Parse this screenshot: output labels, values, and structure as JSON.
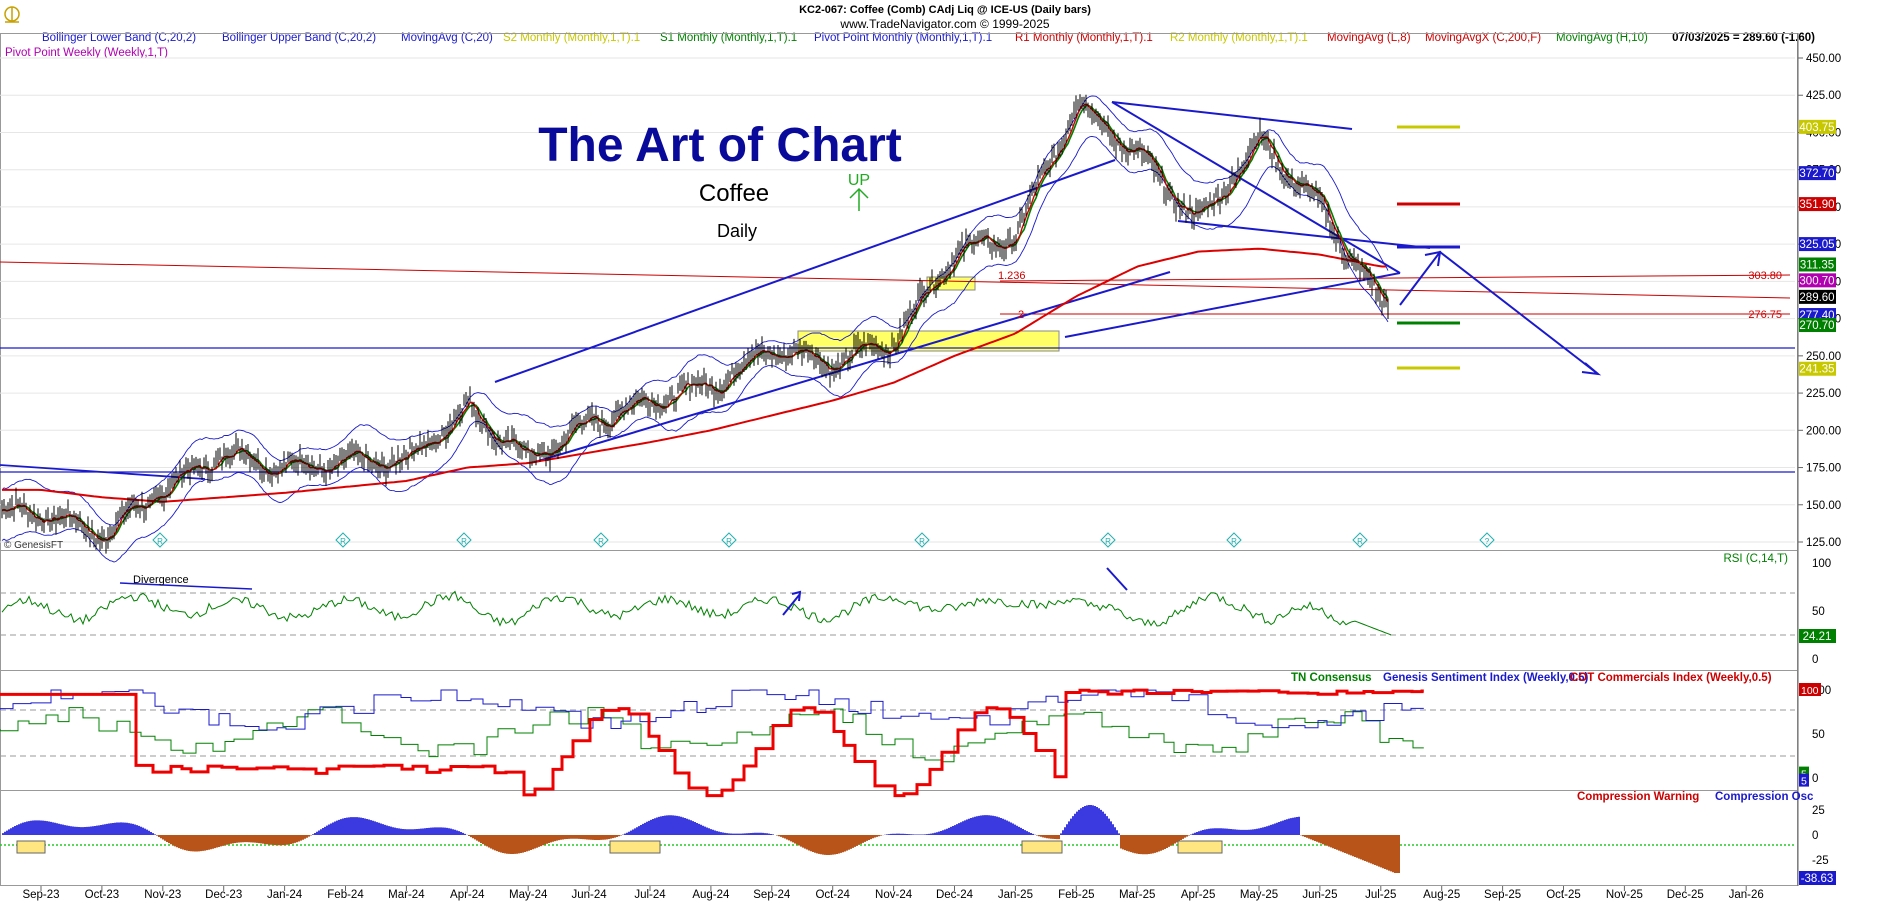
{
  "header": {
    "symbol_line": "KC2-067:  Coffee (Comb) CAdj Liq @ ICE-US  (Daily bars)",
    "copyright": "www.TradeNavigator.com © 1999-2025",
    "watermark": "© GenesisFT"
  },
  "legend": [
    {
      "label": "Bollinger Lower Band (C,20,2)",
      "color": "#1a1acc"
    },
    {
      "label": "Bollinger Upper Band (C,20,2)",
      "color": "#1a1acc"
    },
    {
      "label": "MovingAvg (C,20)",
      "color": "#1a1acc"
    },
    {
      "label": "S2 Monthly (Monthly,1,T).1",
      "color": "#c8c800"
    },
    {
      "label": "S1 Monthly (Monthly,1,T).1",
      "color": "#008000"
    },
    {
      "label": "Pivot Point Monthly (Monthly,1,T).1",
      "color": "#1a1acc"
    },
    {
      "label": "R1 Monthly (Monthly,1,T).1",
      "color": "#cc0000"
    },
    {
      "label": "R2 Monthly (Monthly,1,T).1",
      "color": "#c8c800"
    },
    {
      "label": "MovingAvg (L,8)",
      "color": "#cc0000"
    },
    {
      "label": "MovingAvgX (C,200,F)",
      "color": "#cc0000"
    },
    {
      "label": "MovingAvg (H,10)",
      "color": "#008000"
    }
  ],
  "legend_row2": {
    "label": "Pivot Point Weekly (Weekly,1,T)",
    "color": "#b000b0"
  },
  "last_quote": "07/03/2025 = 289.60 (-1.60)",
  "annotations": {
    "title": "The Art of Chart",
    "subtitle": "Coffee",
    "period": "Daily",
    "up_label": "UP",
    "divergence": "Divergence",
    "fib_1236": "1.236",
    "fib_2": "2",
    "level_303": "303.80",
    "level_276": "276.75",
    "marker_r": "R",
    "marker_q": "?"
  },
  "price_axis": {
    "ticks": [
      "450.00",
      "425.00",
      "400.00",
      "375.00",
      "350.00",
      "325.00",
      "300.00",
      "275.00",
      "250.00",
      "225.00",
      "200.00",
      "175.00",
      "150.00",
      "125.00"
    ],
    "badges": [
      {
        "text": "403.75",
        "bg": "#c8c800",
        "fg": "#ffffff"
      },
      {
        "text": "372.70",
        "bg": "#1a1acc",
        "fg": "#ffffff"
      },
      {
        "text": "351.90",
        "bg": "#cc0000",
        "fg": "#ffffff"
      },
      {
        "text": "325.05",
        "bg": "#1a1acc",
        "fg": "#ffffff"
      },
      {
        "text": "311.35",
        "bg": "#008000",
        "fg": "#ffffff"
      },
      {
        "text": "300.70",
        "bg": "#b000b0",
        "fg": "#ffffff"
      },
      {
        "text": "289.60",
        "bg": "#000000",
        "fg": "#ffffff"
      },
      {
        "text": "277.40",
        "bg": "#1a1acc",
        "fg": "#ffffff"
      },
      {
        "text": "270.70",
        "bg": "#008000",
        "fg": "#ffffff"
      },
      {
        "text": "241.35",
        "bg": "#c8c800",
        "fg": "#ffffff"
      }
    ]
  },
  "rsi_panel": {
    "label": "RSI (C,14,T)",
    "ticks": [
      "100",
      "50",
      "0"
    ],
    "badge": "24.21"
  },
  "sentiment_panel": {
    "labels": [
      {
        "text": "TN Consensus",
        "color": "#008000"
      },
      {
        "text": "Genesis Sentiment Index (Weekly,0.5)",
        "color": "#1a1acc"
      },
      {
        "text": "COT Commercials Index (Weekly,0.5)",
        "color": "#cc0000"
      }
    ],
    "ticks": [
      "100",
      "50",
      "0"
    ],
    "badges": [
      {
        "text": "100",
        "bg": "#cc0000"
      },
      {
        "text": "5",
        "bg": "#008000"
      },
      {
        "text": "5",
        "bg": "#1a1acc"
      }
    ]
  },
  "compression_panel": {
    "labels": [
      {
        "text": "Compression Warning",
        "color": "#cc0000"
      },
      {
        "text": "Compression Osc",
        "color": "#1a1acc"
      }
    ],
    "ticks": [
      "25",
      "0",
      "-25"
    ],
    "badge": "-38.63"
  },
  "x_axis": [
    "Sep-23",
    "Oct-23",
    "Nov-23",
    "Dec-23",
    "Jan-24",
    "Feb-24",
    "Mar-24",
    "Apr-24",
    "May-24",
    "Jun-24",
    "Jul-24",
    "Aug-24",
    "Sep-24",
    "Oct-24",
    "Nov-24",
    "Dec-24",
    "Jan-25",
    "Feb-25",
    "Mar-25",
    "Apr-25",
    "May-25",
    "Jun-25",
    "Jul-25",
    "Aug-25",
    "Sep-25",
    "Oct-25",
    "Nov-25",
    "Dec-25",
    "Jan-26"
  ],
  "chart_data": {
    "type": "line",
    "title": "KC2-067:  Coffee (Comb) CAdj Liq @ ICE-US  (Daily bars)",
    "x_unit": "month",
    "ylim": [
      112,
      458
    ],
    "close_series": {
      "name": "Coffee close",
      "x": [
        "2023-09",
        "2023-10",
        "2023-11",
        "2023-12",
        "2024-01",
        "2024-02",
        "2024-03",
        "2024-04",
        "2024-05",
        "2024-06",
        "2024-07",
        "2024-08",
        "2024-09",
        "2024-10",
        "2024-11",
        "2024-12",
        "2025-01",
        "2025-02",
        "2025-03",
        "2025-04",
        "2025-05",
        "2025-06",
        "2025-07"
      ],
      "values": [
        145,
        130,
        160,
        185,
        175,
        178,
        180,
        215,
        180,
        205,
        220,
        230,
        255,
        245,
        260,
        320,
        330,
        420,
        385,
        340,
        395,
        350,
        285
      ]
    },
    "ma200_series": {
      "name": "MovingAvgX (C,200,F)",
      "values": [
        160,
        155,
        152,
        155,
        158,
        162,
        166,
        175,
        178,
        185,
        192,
        200,
        210,
        220,
        232,
        250,
        265,
        290,
        310,
        320,
        322,
        318,
        310
      ]
    },
    "horizontal_levels": [
      {
        "value": 403.75,
        "color": "#c8c800"
      },
      {
        "value": 351.9,
        "color": "#cc0000"
      },
      {
        "value": 325.05,
        "color": "#1a1acc"
      },
      {
        "value": 270.7,
        "color": "#008000"
      },
      {
        "value": 241.35,
        "color": "#c8c800"
      }
    ],
    "rsi": {
      "name": "RSI (C,14,T)",
      "ylim": [
        0,
        100
      ],
      "last": 24.21
    },
    "sentiment": {
      "ylim": [
        0,
        100
      ],
      "cot_last": 100,
      "tn_last": 5,
      "genesis_last": 5
    },
    "compression": {
      "ylim": [
        -45,
        35
      ],
      "last": -38.63
    }
  }
}
